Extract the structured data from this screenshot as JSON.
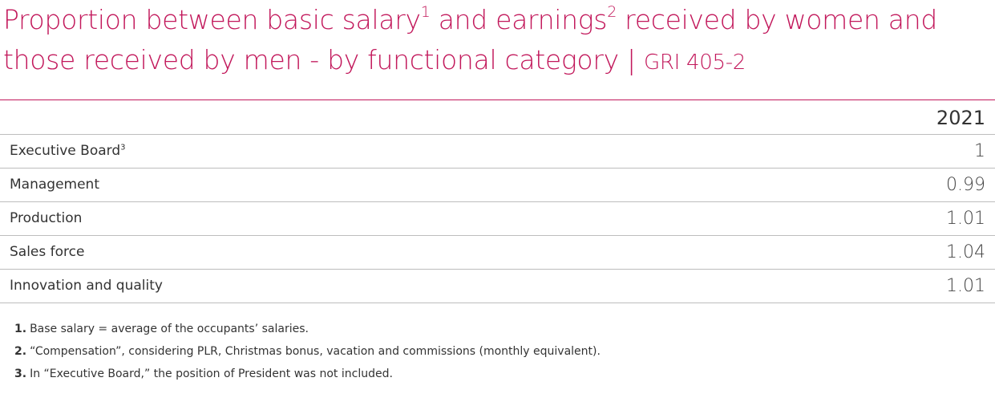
{
  "title": {
    "part1": "Proportion between basic salary",
    "sup1": "1",
    "part2": " and earnings",
    "sup2": "2",
    "part3": " received by women and those received by men - by functional category | ",
    "gri": "GRI 405-2"
  },
  "table": {
    "year_header": "2021",
    "rows": [
      {
        "label": "Executive Board",
        "sup": "3",
        "value": "1"
      },
      {
        "label": "Management",
        "sup": "",
        "value": "0.99"
      },
      {
        "label": "Production",
        "sup": "",
        "value": "1.01"
      },
      {
        "label": "Sales force",
        "sup": "",
        "value": "1.04"
      },
      {
        "label": "Innovation and quality",
        "sup": "",
        "value": "1.01"
      }
    ]
  },
  "footnotes": [
    {
      "num": "1.",
      "text": "Base salary = average of the occupants’ salaries."
    },
    {
      "num": "2.",
      "text": "“Compensation”, considering PLR, Christmas bonus, vacation and commissions (monthly equivalent)."
    },
    {
      "num": "3.",
      "text": "In “Executive Board,” the position of President was not included."
    }
  ],
  "colors": {
    "accent": "#c2185b",
    "divider": "#bdbdbd",
    "text": "#333333"
  }
}
